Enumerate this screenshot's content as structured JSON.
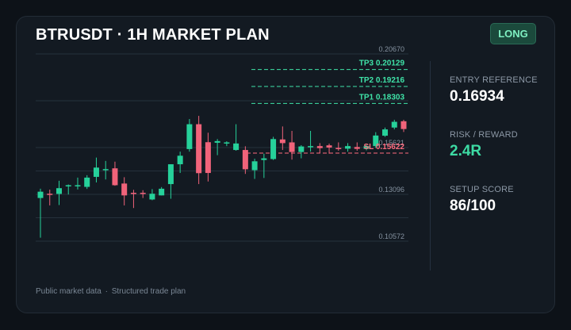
{
  "header": {
    "title": "BTRUSDT · 1H MARKET PLAN",
    "badge": "LONG"
  },
  "chart_data": {
    "type": "candlestick",
    "title": "BTRUSDT · 1H MARKET PLAN",
    "price_ticks": [
      "0.20670",
      "0.15621",
      "0.13096",
      "0.10572"
    ],
    "levels": [
      {
        "label": "TP3 0.20129",
        "value": 0.20129,
        "kind": "tp"
      },
      {
        "label": "TP2 0.19216",
        "value": 0.19216,
        "kind": "tp"
      },
      {
        "label": "TP1 0.18303",
        "value": 0.18303,
        "kind": "tp"
      },
      {
        "label": "SL 0.15622",
        "value": 0.15622,
        "kind": "sl"
      }
    ],
    "ylim": [
      0.10572,
      0.2067
    ],
    "grid": true,
    "candles": [
      {
        "o": 0.129,
        "h": 0.134,
        "l": 0.1076,
        "c": 0.1324
      },
      {
        "o": 0.1313,
        "h": 0.1335,
        "l": 0.125,
        "c": 0.1309
      },
      {
        "o": 0.1312,
        "h": 0.1383,
        "l": 0.1252,
        "c": 0.1343
      },
      {
        "o": 0.1354,
        "h": 0.1363,
        "l": 0.1309,
        "c": 0.1359
      },
      {
        "o": 0.1354,
        "h": 0.14,
        "l": 0.1336,
        "c": 0.1359
      },
      {
        "o": 0.135,
        "h": 0.1413,
        "l": 0.1339,
        "c": 0.14
      },
      {
        "o": 0.1404,
        "h": 0.1508,
        "l": 0.1374,
        "c": 0.1454
      },
      {
        "o": 0.1443,
        "h": 0.149,
        "l": 0.139,
        "c": 0.1446
      },
      {
        "o": 0.145,
        "h": 0.1486,
        "l": 0.1356,
        "c": 0.1359
      },
      {
        "o": 0.1368,
        "h": 0.1402,
        "l": 0.125,
        "c": 0.1304
      },
      {
        "o": 0.1318,
        "h": 0.1334,
        "l": 0.1236,
        "c": 0.1315
      },
      {
        "o": 0.1318,
        "h": 0.1332,
        "l": 0.129,
        "c": 0.1313
      },
      {
        "o": 0.1282,
        "h": 0.1338,
        "l": 0.1278,
        "c": 0.1313
      },
      {
        "o": 0.1304,
        "h": 0.1349,
        "l": 0.1304,
        "c": 0.134
      },
      {
        "o": 0.1365,
        "h": 0.1472,
        "l": 0.1286,
        "c": 0.1472
      },
      {
        "o": 0.1472,
        "h": 0.154,
        "l": 0.1425,
        "c": 0.1518
      },
      {
        "o": 0.1554,
        "h": 0.1716,
        "l": 0.154,
        "c": 0.1688
      },
      {
        "o": 0.1688,
        "h": 0.1733,
        "l": 0.1365,
        "c": 0.1424
      },
      {
        "o": 0.1591,
        "h": 0.1642,
        "l": 0.1379,
        "c": 0.1425
      },
      {
        "o": 0.1588,
        "h": 0.1608,
        "l": 0.1521,
        "c": 0.1597
      },
      {
        "o": 0.1589,
        "h": 0.1596,
        "l": 0.157,
        "c": 0.159
      },
      {
        "o": 0.1549,
        "h": 0.1688,
        "l": 0.1545,
        "c": 0.1584
      },
      {
        "o": 0.1549,
        "h": 0.1569,
        "l": 0.142,
        "c": 0.1445
      },
      {
        "o": 0.144,
        "h": 0.1502,
        "l": 0.1393,
        "c": 0.1488
      },
      {
        "o": 0.1495,
        "h": 0.1529,
        "l": 0.1398,
        "c": 0.1504
      },
      {
        "o": 0.15,
        "h": 0.162,
        "l": 0.1495,
        "c": 0.1608
      },
      {
        "o": 0.1606,
        "h": 0.1676,
        "l": 0.1549,
        "c": 0.1586
      },
      {
        "o": 0.159,
        "h": 0.1652,
        "l": 0.1497,
        "c": 0.1538
      },
      {
        "o": 0.1538,
        "h": 0.1575,
        "l": 0.1504,
        "c": 0.1568
      },
      {
        "o": 0.1565,
        "h": 0.1652,
        "l": 0.154,
        "c": 0.157
      },
      {
        "o": 0.157,
        "h": 0.1586,
        "l": 0.153,
        "c": 0.1559
      },
      {
        "o": 0.1574,
        "h": 0.1583,
        "l": 0.1529,
        "c": 0.1562
      },
      {
        "o": 0.156,
        "h": 0.159,
        "l": 0.1545,
        "c": 0.1555
      },
      {
        "o": 0.1556,
        "h": 0.1586,
        "l": 0.154,
        "c": 0.157
      },
      {
        "o": 0.1565,
        "h": 0.159,
        "l": 0.1545,
        "c": 0.1555
      },
      {
        "o": 0.1555,
        "h": 0.158,
        "l": 0.1547,
        "c": 0.157
      },
      {
        "o": 0.157,
        "h": 0.1645,
        "l": 0.156,
        "c": 0.1627
      },
      {
        "o": 0.1626,
        "h": 0.167,
        "l": 0.162,
        "c": 0.166
      },
      {
        "o": 0.167,
        "h": 0.1712,
        "l": 0.166,
        "c": 0.1701
      },
      {
        "o": 0.1704,
        "h": 0.1712,
        "l": 0.1646,
        "c": 0.1662
      }
    ]
  },
  "stats": [
    {
      "label": "ENTRY REFERENCE",
      "value": "0.16934",
      "tone": "white"
    },
    {
      "label": "RISK / REWARD",
      "value": "2.4R",
      "tone": "green"
    },
    {
      "label": "SETUP SCORE",
      "value": "86/100",
      "tone": "white"
    }
  ],
  "footer": {
    "left": "Public market data",
    "separator": "·",
    "right": "Structured trade plan"
  },
  "colors": {
    "up": "#26d19a",
    "down": "#f0637a",
    "tp": "#3fe3a8",
    "sl": "#ff6b7e",
    "grid": "#26313c"
  }
}
